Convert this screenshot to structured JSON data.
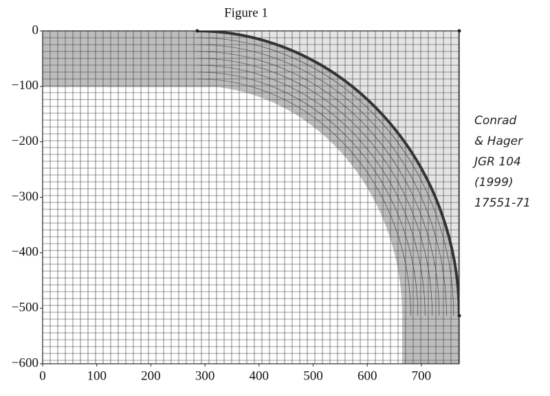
{
  "chart_data": {
    "type": "mesh",
    "title": "Figure 1",
    "xlim": [
      0,
      770
    ],
    "ylim": [
      -600,
      0
    ],
    "xticks": [
      0,
      100,
      200,
      300,
      400,
      500,
      600,
      700
    ],
    "yticks": [
      {
        "value": 0,
        "label": "0"
      },
      {
        "value": -100,
        "label": "−100"
      },
      {
        "value": -200,
        "label": "−200"
      },
      {
        "value": -300,
        "label": "−300"
      },
      {
        "value": -400,
        "label": "−400"
      },
      {
        "value": -500,
        "label": "−500"
      },
      {
        "value": -600,
        "label": "−600"
      }
    ],
    "annotation": [
      "Conrad",
      "& Hager",
      "JGR 104",
      "(1999)",
      "17551-71"
    ]
  }
}
